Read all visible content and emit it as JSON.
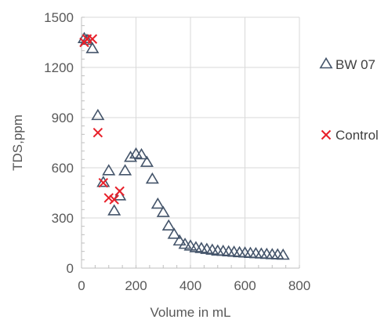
{
  "chart_data": {
    "type": "scatter",
    "title": "",
    "xlabel": "Volume in mL",
    "ylabel": "TDS,ppm",
    "xlim": [
      0,
      800
    ],
    "ylim": [
      0,
      1500
    ],
    "xticks": [
      0,
      200,
      400,
      600,
      800
    ],
    "yticks": [
      0,
      300,
      600,
      900,
      1200,
      1500
    ],
    "grid": true,
    "legend_position": "right",
    "series": [
      {
        "name": "BW 07",
        "marker": "triangle",
        "color": "#44546A",
        "points": [
          [
            10,
            1370
          ],
          [
            20,
            1360
          ],
          [
            40,
            1310
          ],
          [
            60,
            910
          ],
          [
            80,
            510
          ],
          [
            100,
            580
          ],
          [
            120,
            340
          ],
          [
            140,
            430
          ],
          [
            160,
            580
          ],
          [
            180,
            660
          ],
          [
            200,
            680
          ],
          [
            220,
            675
          ],
          [
            240,
            630
          ],
          [
            260,
            530
          ],
          [
            280,
            380
          ],
          [
            300,
            330
          ],
          [
            320,
            250
          ],
          [
            340,
            200
          ],
          [
            360,
            160
          ],
          [
            380,
            140
          ],
          [
            400,
            130
          ],
          [
            420,
            120
          ],
          [
            440,
            115
          ],
          [
            460,
            110
          ],
          [
            480,
            105
          ],
          [
            500,
            100
          ],
          [
            520,
            98
          ],
          [
            540,
            95
          ],
          [
            560,
            93
          ],
          [
            580,
            90
          ],
          [
            600,
            88
          ],
          [
            620,
            86
          ],
          [
            640,
            84
          ],
          [
            660,
            82
          ],
          [
            680,
            80
          ],
          [
            700,
            78
          ],
          [
            720,
            77
          ],
          [
            740,
            75
          ]
        ]
      },
      {
        "name": "Control",
        "marker": "x",
        "color": "#E8202A",
        "points": [
          [
            10,
            1350
          ],
          [
            20,
            1370
          ],
          [
            40,
            1370
          ],
          [
            60,
            810
          ],
          [
            80,
            510
          ],
          [
            100,
            420
          ],
          [
            120,
            410
          ],
          [
            140,
            460
          ]
        ]
      }
    ]
  }
}
